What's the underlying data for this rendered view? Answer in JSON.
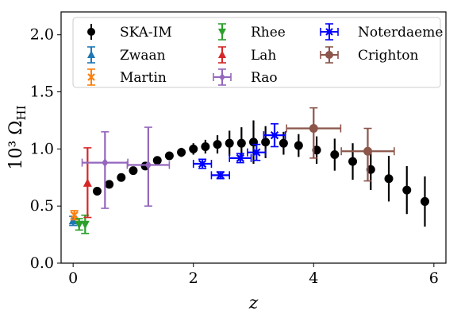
{
  "chart_data": {
    "type": "scatter",
    "xlabel": "z",
    "ylabel": "10³ Ω",
    "ylabel_sub": "HI",
    "xlim": [
      -0.2,
      6.2
    ],
    "ylim": [
      0.0,
      2.2
    ],
    "xticks": [
      0,
      2,
      4,
      6
    ],
    "yticks": [
      0.0,
      0.5,
      1.0,
      1.5,
      2.0
    ],
    "xtick_labels": [
      "0",
      "2",
      "4",
      "6"
    ],
    "ytick_labels": [
      "0.0",
      "0.5",
      "1.0",
      "1.5",
      "2.0"
    ],
    "grid": false,
    "legend_position": "top",
    "series": [
      {
        "name": "SKA-IM",
        "color": "#000000",
        "marker": "circle",
        "points": [
          {
            "x": 0.4,
            "y": 0.63,
            "yerr": [
              0.03,
              0.03
            ]
          },
          {
            "x": 0.6,
            "y": 0.69,
            "yerr": [
              0.03,
              0.03
            ]
          },
          {
            "x": 0.8,
            "y": 0.75,
            "yerr": [
              0.03,
              0.03
            ]
          },
          {
            "x": 1.0,
            "y": 0.81,
            "yerr": [
              0.03,
              0.03
            ]
          },
          {
            "x": 1.2,
            "y": 0.85,
            "yerr": [
              0.03,
              0.03
            ]
          },
          {
            "x": 1.4,
            "y": 0.9,
            "yerr": [
              0.03,
              0.03
            ]
          },
          {
            "x": 1.6,
            "y": 0.94,
            "yerr": [
              0.03,
              0.03
            ]
          },
          {
            "x": 1.8,
            "y": 0.97,
            "yerr": [
              0.04,
              0.04
            ]
          },
          {
            "x": 2.0,
            "y": 1.0,
            "yerr": [
              0.05,
              0.05
            ]
          },
          {
            "x": 2.2,
            "y": 1.02,
            "yerr": [
              0.06,
              0.06
            ]
          },
          {
            "x": 2.4,
            "y": 1.04,
            "yerr": [
              0.08,
              0.08
            ]
          },
          {
            "x": 2.6,
            "y": 1.05,
            "yerr": [
              0.11,
              0.11
            ]
          },
          {
            "x": 2.8,
            "y": 1.05,
            "yerr": [
              0.14,
              0.14
            ]
          },
          {
            "x": 3.0,
            "y": 1.06,
            "yerr": [
              0.19,
              0.19
            ]
          },
          {
            "x": 3.2,
            "y": 1.06,
            "yerr": [
              0.14,
              0.14
            ]
          },
          {
            "x": 3.5,
            "y": 1.05,
            "yerr": [
              0.1,
              0.1
            ]
          },
          {
            "x": 3.75,
            "y": 1.03,
            "yerr": [
              0.1,
              0.1
            ]
          },
          {
            "x": 4.05,
            "y": 0.99,
            "yerr": [
              0.12,
              0.12
            ]
          },
          {
            "x": 4.35,
            "y": 0.95,
            "yerr": [
              0.14,
              0.14
            ]
          },
          {
            "x": 4.65,
            "y": 0.89,
            "yerr": [
              0.16,
              0.16
            ]
          },
          {
            "x": 4.95,
            "y": 0.82,
            "yerr": [
              0.18,
              0.18
            ]
          },
          {
            "x": 5.25,
            "y": 0.74,
            "yerr": [
              0.2,
              0.2
            ]
          },
          {
            "x": 5.55,
            "y": 0.64,
            "yerr": [
              0.21,
              0.21
            ]
          },
          {
            "x": 5.85,
            "y": 0.54,
            "yerr": [
              0.22,
              0.22
            ]
          }
        ]
      },
      {
        "name": "Zwaan",
        "color": "#1f77b4",
        "marker": "triangle-up",
        "points": [
          {
            "x": 0.0,
            "y": 0.37,
            "yerr": [
              0.04,
              0.04
            ]
          }
        ]
      },
      {
        "name": "Martin",
        "color": "#ff7f0e",
        "marker": "x",
        "points": [
          {
            "x": 0.02,
            "y": 0.42,
            "yerr": [
              0.04,
              0.04
            ]
          }
        ]
      },
      {
        "name": "Rhee",
        "color": "#2ca02c",
        "marker": "triangle-down",
        "points": [
          {
            "x": 0.1,
            "y": 0.34,
            "yerr": [
              0.05,
              0.05
            ]
          },
          {
            "x": 0.2,
            "y": 0.34,
            "yerr": [
              0.08,
              0.08
            ]
          }
        ]
      },
      {
        "name": "Lah",
        "color": "#d62728",
        "marker": "triangle-up",
        "points": [
          {
            "x": 0.24,
            "y": 0.7,
            "yerr": [
              0.3,
              0.31
            ]
          }
        ]
      },
      {
        "name": "Rao",
        "color": "#9467bd",
        "marker": "diamond",
        "points": [
          {
            "x": 0.53,
            "y": 0.88,
            "xerr": [
              0.38,
              0.38
            ],
            "yerr": [
              0.4,
              0.27
            ]
          },
          {
            "x": 1.25,
            "y": 0.86,
            "xerr": [
              0.35,
              0.35
            ],
            "yerr": [
              0.36,
              0.33
            ]
          }
        ]
      },
      {
        "name": "Noterdaeme",
        "color": "#0000ff",
        "marker": "x",
        "points": [
          {
            "x": 2.15,
            "y": 0.87,
            "xerr": [
              0.15,
              0.15
            ],
            "yerr": [
              0.04,
              0.04
            ]
          },
          {
            "x": 2.45,
            "y": 0.77,
            "xerr": [
              0.15,
              0.15
            ],
            "yerr": [
              0.03,
              0.03
            ]
          },
          {
            "x": 2.78,
            "y": 0.92,
            "xerr": [
              0.18,
              0.18
            ],
            "yerr": [
              0.04,
              0.04
            ]
          },
          {
            "x": 3.05,
            "y": 0.97,
            "xerr": [
              0.15,
              0.15
            ],
            "yerr": [
              0.07,
              0.07
            ]
          },
          {
            "x": 3.35,
            "y": 1.12,
            "xerr": [
              0.18,
              0.18
            ],
            "yerr": [
              0.1,
              0.1
            ]
          }
        ]
      },
      {
        "name": "Crighton",
        "color": "#8c564b",
        "marker": "circle",
        "points": [
          {
            "x": 4.0,
            "y": 1.18,
            "xerr": [
              0.45,
              0.45
            ],
            "yerr": [
              0.26,
              0.18
            ]
          },
          {
            "x": 4.9,
            "y": 0.98,
            "xerr": [
              0.44,
              0.44
            ],
            "yerr": [
              0.26,
              0.2
            ]
          }
        ]
      }
    ]
  }
}
